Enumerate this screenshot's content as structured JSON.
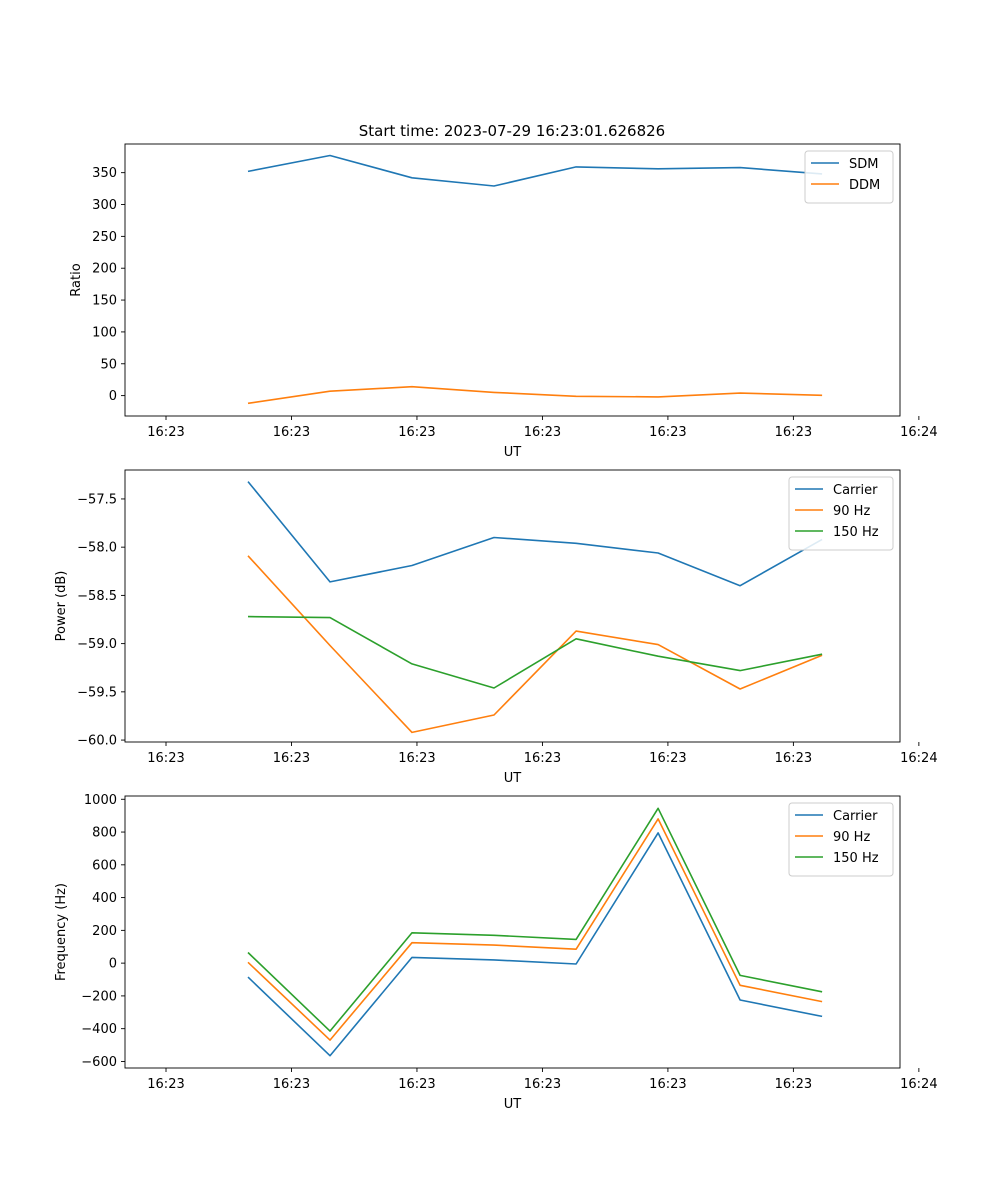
{
  "title": "Start time: 2023-07-29 16:23:01.626826",
  "colors": {
    "blue": "#1f77b4",
    "orange": "#ff7f0e",
    "green": "#2ca02c",
    "axis": "#000000"
  },
  "chart_data": [
    {
      "type": "line",
      "title": "Start time: 2023-07-29 16:23:01.626826",
      "xlabel": "UT",
      "ylabel": "Ratio",
      "x_index": [
        1,
        2,
        3,
        4,
        5,
        6,
        7,
        8
      ],
      "xlim": [
        -0.5,
        8.95
      ],
      "xticks": [
        0,
        1.53,
        3.06,
        4.59,
        6.12,
        7.65,
        9.18
      ],
      "xtick_labels": [
        "16:23",
        "16:23",
        "16:23",
        "16:23",
        "16:23",
        "16:23",
        "16:24"
      ],
      "ylim": [
        -32,
        395
      ],
      "yticks": [
        0,
        50,
        100,
        150,
        200,
        250,
        300,
        350
      ],
      "ytick_labels": [
        "0",
        "50",
        "100",
        "150",
        "200",
        "250",
        "300",
        "350"
      ],
      "legend_position": "top-right",
      "series": [
        {
          "name": "SDM",
          "color": "#1f77b4",
          "values": [
            352,
            377,
            342,
            329,
            359,
            356,
            358,
            348
          ]
        },
        {
          "name": "DDM",
          "color": "#ff7f0e",
          "values": [
            -12,
            7,
            14,
            5,
            -1,
            -2,
            4,
            0.5
          ]
        }
      ]
    },
    {
      "type": "line",
      "xlabel": "UT",
      "ylabel": "Power (dB)",
      "x_index": [
        1,
        2,
        3,
        4,
        5,
        6,
        7,
        8
      ],
      "xlim": [
        -0.5,
        8.95
      ],
      "xticks": [
        0,
        1.53,
        3.06,
        4.59,
        6.12,
        7.65,
        9.18
      ],
      "xtick_labels": [
        "16:23",
        "16:23",
        "16:23",
        "16:23",
        "16:23",
        "16:23",
        "16:24"
      ],
      "ylim": [
        -60.02,
        -57.2
      ],
      "yticks": [
        -60.0,
        -59.5,
        -59.0,
        -58.5,
        -58.0,
        -57.5
      ],
      "ytick_labels": [
        "−60.0",
        "−59.5",
        "−59.0",
        "−58.5",
        "−58.0",
        "−57.5"
      ],
      "legend_position": "top-right",
      "series": [
        {
          "name": "Carrier",
          "color": "#1f77b4",
          "values": [
            -57.32,
            -58.36,
            -58.19,
            -57.9,
            -57.96,
            -58.06,
            -58.4,
            -57.92
          ]
        },
        {
          "name": "90 Hz",
          "color": "#ff7f0e",
          "values": [
            -58.09,
            -59.02,
            -59.92,
            -59.74,
            -58.87,
            -59.01,
            -59.47,
            -59.12
          ]
        },
        {
          "name": "150 Hz",
          "color": "#2ca02c",
          "values": [
            -58.72,
            -58.73,
            -59.21,
            -59.46,
            -58.95,
            -59.13,
            -59.28,
            -59.11
          ]
        }
      ]
    },
    {
      "type": "line",
      "xlabel": "UT",
      "ylabel": "Frequency (Hz)",
      "x_index": [
        1,
        2,
        3,
        4,
        5,
        6,
        7,
        8
      ],
      "xlim": [
        -0.5,
        8.95
      ],
      "xticks": [
        0,
        1.53,
        3.06,
        4.59,
        6.12,
        7.65,
        9.18
      ],
      "xtick_labels": [
        "16:23",
        "16:23",
        "16:23",
        "16:23",
        "16:23",
        "16:23",
        "16:24"
      ],
      "ylim": [
        -640,
        1020
      ],
      "yticks": [
        -600,
        -400,
        -200,
        0,
        200,
        400,
        600,
        800,
        1000
      ],
      "ytick_labels": [
        "−600",
        "−400",
        "−200",
        "0",
        "200",
        "400",
        "600",
        "800",
        "1000"
      ],
      "legend_position": "top-right",
      "series": [
        {
          "name": "Carrier",
          "color": "#1f77b4",
          "values": [
            -85,
            -565,
            35,
            20,
            -5,
            795,
            -225,
            -325
          ]
        },
        {
          "name": "90 Hz",
          "color": "#ff7f0e",
          "values": [
            5,
            -470,
            125,
            110,
            85,
            880,
            -135,
            -235
          ]
        },
        {
          "name": "150 Hz",
          "color": "#2ca02c",
          "values": [
            65,
            -415,
            185,
            170,
            145,
            945,
            -75,
            -175
          ]
        }
      ]
    }
  ]
}
